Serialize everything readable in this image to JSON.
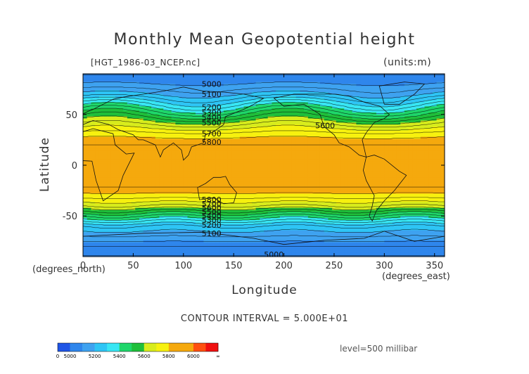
{
  "chart_data": {
    "type": "heatmap",
    "title": "Monthly Mean Geopotential height",
    "source_label": "[HGT_1986-03_NCEP.nc]",
    "units_label": "(units:m)",
    "xlabel": "Longitude",
    "ylabel": "Latitude",
    "x_unit_label": "(degrees_east)",
    "y_unit_label": "(degrees_north)",
    "xlim": [
      0,
      360
    ],
    "ylim": [
      -90,
      90
    ],
    "x_ticks": [
      "0",
      "50",
      "100",
      "150",
      "200",
      "250",
      "300",
      "350"
    ],
    "x_tick_values": [
      0,
      50,
      100,
      150,
      200,
      250,
      300,
      350
    ],
    "y_ticks": [
      "50",
      "0",
      "-50"
    ],
    "y_tick_values": [
      50,
      0,
      -50
    ],
    "contour_interval_text": "CONTOUR INTERVAL = 5.000E+01",
    "level_text": "level=500 millibar",
    "zonal_mean_height_profile": [
      {
        "lat": 90,
        "value": 5050
      },
      {
        "lat": 80,
        "value": 5100
      },
      {
        "lat": 70,
        "value": 5200
      },
      {
        "lat": 60,
        "value": 5350
      },
      {
        "lat": 50,
        "value": 5500
      },
      {
        "lat": 40,
        "value": 5650
      },
      {
        "lat": 30,
        "value": 5780
      },
      {
        "lat": 20,
        "value": 5850
      },
      {
        "lat": 0,
        "value": 5870
      },
      {
        "lat": -20,
        "value": 5860
      },
      {
        "lat": -30,
        "value": 5780
      },
      {
        "lat": -40,
        "value": 5650
      },
      {
        "lat": -50,
        "value": 5450
      },
      {
        "lat": -60,
        "value": 5250
      },
      {
        "lat": -70,
        "value": 5150
      },
      {
        "lat": -80,
        "value": 5050
      },
      {
        "lat": -90,
        "value": 5000
      }
    ],
    "contour_labels": [
      {
        "text": "5000",
        "lon": 128,
        "lat": 80
      },
      {
        "text": "5100",
        "lon": 128,
        "lat": 70
      },
      {
        "text": "5200",
        "lon": 128,
        "lat": 57
      },
      {
        "text": "5300",
        "lon": 128,
        "lat": 52
      },
      {
        "text": "5400",
        "lon": 128,
        "lat": 47
      },
      {
        "text": "5500",
        "lon": 128,
        "lat": 42
      },
      {
        "text": "5600",
        "lon": 241,
        "lat": 39
      },
      {
        "text": "5700",
        "lon": 128,
        "lat": 31
      },
      {
        "text": "5800",
        "lon": 128,
        "lat": 23
      },
      {
        "text": "5800",
        "lon": 128,
        "lat": -34
      },
      {
        "text": "5700",
        "lon": 128,
        "lat": -38
      },
      {
        "text": "5600",
        "lon": 128,
        "lat": -42
      },
      {
        "text": "5500",
        "lon": 128,
        "lat": -46
      },
      {
        "text": "5400",
        "lon": 128,
        "lat": -50
      },
      {
        "text": "5300",
        "lon": 128,
        "lat": -54
      },
      {
        "text": "5200",
        "lon": 128,
        "lat": -59
      },
      {
        "text": "5100",
        "lon": 128,
        "lat": -67
      },
      {
        "text": "5000",
        "lon": 190,
        "lat": -88
      }
    ],
    "colorbar": {
      "labels": [
        "0",
        "5000",
        "5200",
        "5400",
        "5600",
        "5800",
        "6000",
        "∞"
      ],
      "bins": [
        {
          "from": "0",
          "to": "5000",
          "color": "#1f55e6"
        },
        {
          "from": "5000",
          "to": "5100",
          "color": "#2f86ec"
        },
        {
          "from": "5100",
          "to": "5200",
          "color": "#3ea2f0"
        },
        {
          "from": "5200",
          "to": "5300",
          "color": "#2ec5f5"
        },
        {
          "from": "5300",
          "to": "5400",
          "color": "#38e6f4"
        },
        {
          "from": "5400",
          "to": "5500",
          "color": "#1fd66a"
        },
        {
          "from": "5500",
          "to": "5600",
          "color": "#1fbf3a"
        },
        {
          "from": "5600",
          "to": "5700",
          "color": "#d8ec1c"
        },
        {
          "from": "5700",
          "to": "5800",
          "color": "#f7f10f"
        },
        {
          "from": "5800",
          "to": "5900",
          "color": "#f5a90d"
        },
        {
          "from": "5900",
          "to": "6000",
          "color": "#f5a90d"
        },
        {
          "from": "6000",
          "to": "6100",
          "color": "#ff5010"
        },
        {
          "from": "6100",
          "to": "∞",
          "color": "#f01010"
        }
      ]
    }
  }
}
